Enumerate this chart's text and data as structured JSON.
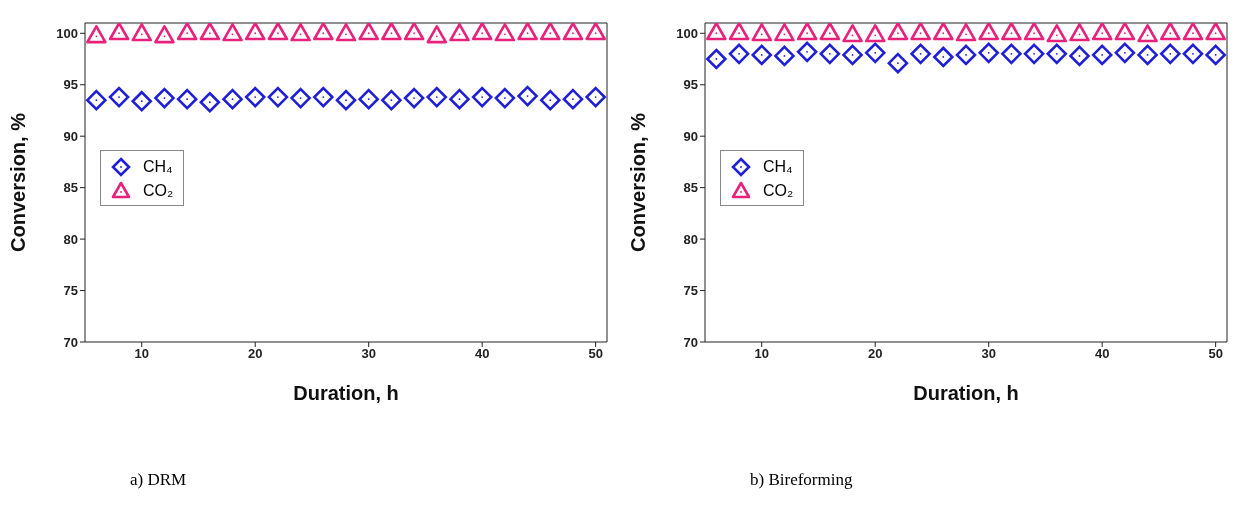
{
  "chart_data": [
    {
      "type": "scatter",
      "xlabel": "Duration, h",
      "ylabel": "Conversion, %",
      "annotations": [
        "a)  DRM"
      ],
      "x": [
        6,
        8,
        10,
        12,
        14,
        16,
        18,
        20,
        22,
        24,
        26,
        28,
        30,
        32,
        34,
        36,
        38,
        40,
        42,
        44,
        46,
        48,
        50
      ],
      "series": [
        {
          "name": "CH₄",
          "color": "#1f1fd6",
          "marker": "diamond",
          "values": [
            93.5,
            93.8,
            93.4,
            93.7,
            93.6,
            93.3,
            93.6,
            93.8,
            93.8,
            93.7,
            93.8,
            93.5,
            93.6,
            93.5,
            93.7,
            93.8,
            93.6,
            93.8,
            93.7,
            93.9,
            93.5,
            93.6,
            93.8
          ]
        },
        {
          "name": "CO₂",
          "color": "#e8217a",
          "marker": "triangle",
          "values": [
            99.8,
            100.1,
            100,
            99.8,
            100.1,
            100.1,
            100,
            100.1,
            100.1,
            100,
            100.1,
            100,
            100.1,
            100.1,
            100.1,
            99.8,
            100,
            100.1,
            100,
            100.1,
            100.1,
            100.1,
            100.1
          ]
        }
      ],
      "xlim": [
        5,
        51
      ],
      "xticks": [
        10,
        20,
        30,
        40,
        50
      ],
      "ylim": [
        70,
        101
      ],
      "yticks": [
        70,
        75,
        80,
        85,
        90,
        95,
        100
      ],
      "legend": "left",
      "grid": false
    },
    {
      "type": "scatter",
      "xlabel": "Duration, h",
      "ylabel": "Conversion, %",
      "annotations": [
        "b) Bireforming"
      ],
      "x": [
        6,
        8,
        10,
        12,
        14,
        16,
        18,
        20,
        22,
        24,
        26,
        28,
        30,
        32,
        34,
        36,
        38,
        40,
        42,
        44,
        46,
        48,
        50
      ],
      "series": [
        {
          "name": "CH₄",
          "color": "#1f1fd6",
          "marker": "diamond",
          "values": [
            97.5,
            98,
            97.9,
            97.8,
            98.2,
            98,
            97.9,
            98.1,
            97.1,
            98,
            97.7,
            97.9,
            98.1,
            98,
            98,
            98,
            97.8,
            97.9,
            98.1,
            97.9,
            98,
            98,
            97.9
          ]
        },
        {
          "name": "CO₂",
          "color": "#e8217a",
          "marker": "triangle",
          "values": [
            100.1,
            100.1,
            100,
            100,
            100.1,
            100.1,
            99.9,
            99.9,
            100.1,
            100.1,
            100.1,
            100,
            100.1,
            100.1,
            100.1,
            99.9,
            100,
            100.1,
            100.1,
            99.9,
            100.1,
            100.1,
            100.1
          ]
        }
      ],
      "xlim": [
        5,
        51
      ],
      "xticks": [
        10,
        20,
        30,
        40,
        50
      ],
      "ylim": [
        70,
        101
      ],
      "yticks": [
        70,
        75,
        80,
        85,
        90,
        95,
        100
      ],
      "legend": "left",
      "grid": false
    }
  ]
}
